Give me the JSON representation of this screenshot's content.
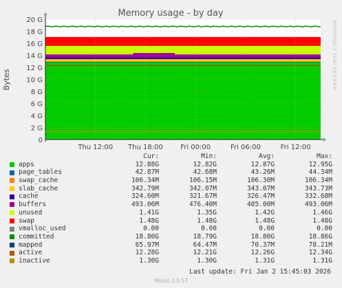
{
  "title": "Memory usage - by day",
  "ylabel": "Bytes",
  "side_text": "RRDTOOL / TOBI OETIKER",
  "munin_version": "Munin 2.0.57",
  "last_update": "Last update: Fri Jan  2 15:45:03 2026",
  "legend_headers": [
    "Cur:",
    "Min:",
    "Avg:",
    "Max:"
  ],
  "legend": [
    {
      "name": "apps",
      "color": "#00cc00",
      "cur": "12.88G",
      "min": "12.82G",
      "avg": "12.87G",
      "max": "12.95G"
    },
    {
      "name": "page_tables",
      "color": "#0066b3",
      "cur": "42.87M",
      "min": "42.68M",
      "avg": "43.26M",
      "max": "44.34M"
    },
    {
      "name": "swap_cache",
      "color": "#ff8000",
      "cur": "106.34M",
      "min": "106.15M",
      "avg": "106.30M",
      "max": "106.34M"
    },
    {
      "name": "slab_cache",
      "color": "#ffcc00",
      "cur": "342.79M",
      "min": "342.07M",
      "avg": "343.07M",
      "max": "343.73M"
    },
    {
      "name": "cache",
      "color": "#330099",
      "cur": "324.60M",
      "min": "321.67M",
      "avg": "326.47M",
      "max": "332.68M"
    },
    {
      "name": "buffers",
      "color": "#990099",
      "cur": "493.06M",
      "min": "476.40M",
      "avg": "485.00M",
      "max": "493.06M"
    },
    {
      "name": "unused",
      "color": "#ccff00",
      "cur": "1.41G",
      "min": "1.35G",
      "avg": "1.42G",
      "max": "1.46G"
    },
    {
      "name": "swap",
      "color": "#ff0000",
      "cur": "1.48G",
      "min": "1.48G",
      "avg": "1.48G",
      "max": "1.48G"
    },
    {
      "name": "vmalloc_used",
      "color": "#808080",
      "cur": "0.00",
      "min": "0.00",
      "avg": "0.00",
      "max": "0.00"
    },
    {
      "name": "committed",
      "color": "#008f00",
      "cur": "18.80G",
      "min": "18.79G",
      "avg": "18.80G",
      "max": "18.86G"
    },
    {
      "name": "mapped",
      "color": "#00487d",
      "cur": "65.97M",
      "min": "64.47M",
      "avg": "70.37M",
      "max": "78.21M"
    },
    {
      "name": "active",
      "color": "#b35a00",
      "cur": "12.28G",
      "min": "12.21G",
      "avg": "12.26G",
      "max": "12.34G"
    },
    {
      "name": "inactive",
      "color": "#b38f00",
      "cur": "1.30G",
      "min": "1.30G",
      "avg": "1.31G",
      "max": "1.31G"
    }
  ],
  "chart_data": {
    "type": "area",
    "title": "Memory usage - by day",
    "ylabel": "Bytes",
    "ylim": [
      0,
      20
    ],
    "y_unit": "G",
    "yticks": [
      "0",
      "2 G",
      "4 G",
      "6 G",
      "8 G",
      "10 G",
      "12 G",
      "14 G",
      "16 G",
      "18 G",
      "20 G"
    ],
    "x_range_hours": [
      0,
      33
    ],
    "xticks": [
      {
        "label": "Thu 12:00",
        "hour": 6
      },
      {
        "label": "Thu 18:00",
        "hour": 12
      },
      {
        "label": "Fri 00:00",
        "hour": 18
      },
      {
        "label": "Fri 06:00",
        "hour": 24
      },
      {
        "label": "Fri 12:00",
        "hour": 30
      }
    ],
    "grid": true,
    "stacked_series": [
      {
        "name": "apps",
        "color": "#00cc00",
        "value": 12.88
      },
      {
        "name": "page_tables",
        "color": "#0066b3",
        "value": 0.042
      },
      {
        "name": "swap_cache",
        "color": "#ff8000",
        "value": 0.104
      },
      {
        "name": "slab_cache",
        "color": "#ffcc00",
        "value": 0.335
      },
      {
        "name": "cache",
        "color": "#330099",
        "value": 0.317
      },
      {
        "name": "buffers",
        "color": "#990099",
        "value": 0.481
      },
      {
        "name": "unused",
        "color": "#ccff00",
        "value": 1.41
      },
      {
        "name": "swap",
        "color": "#ff0000",
        "value": 1.48
      }
    ],
    "line_series": [
      {
        "name": "committed",
        "color": "#008f00",
        "value": 18.8
      },
      {
        "name": "mapped",
        "color": "#00487d",
        "value": 0.064
      },
      {
        "name": "active",
        "color": "#b35a00",
        "value": 12.28
      },
      {
        "name": "inactive",
        "color": "#b38f00",
        "value": 1.3
      }
    ]
  }
}
